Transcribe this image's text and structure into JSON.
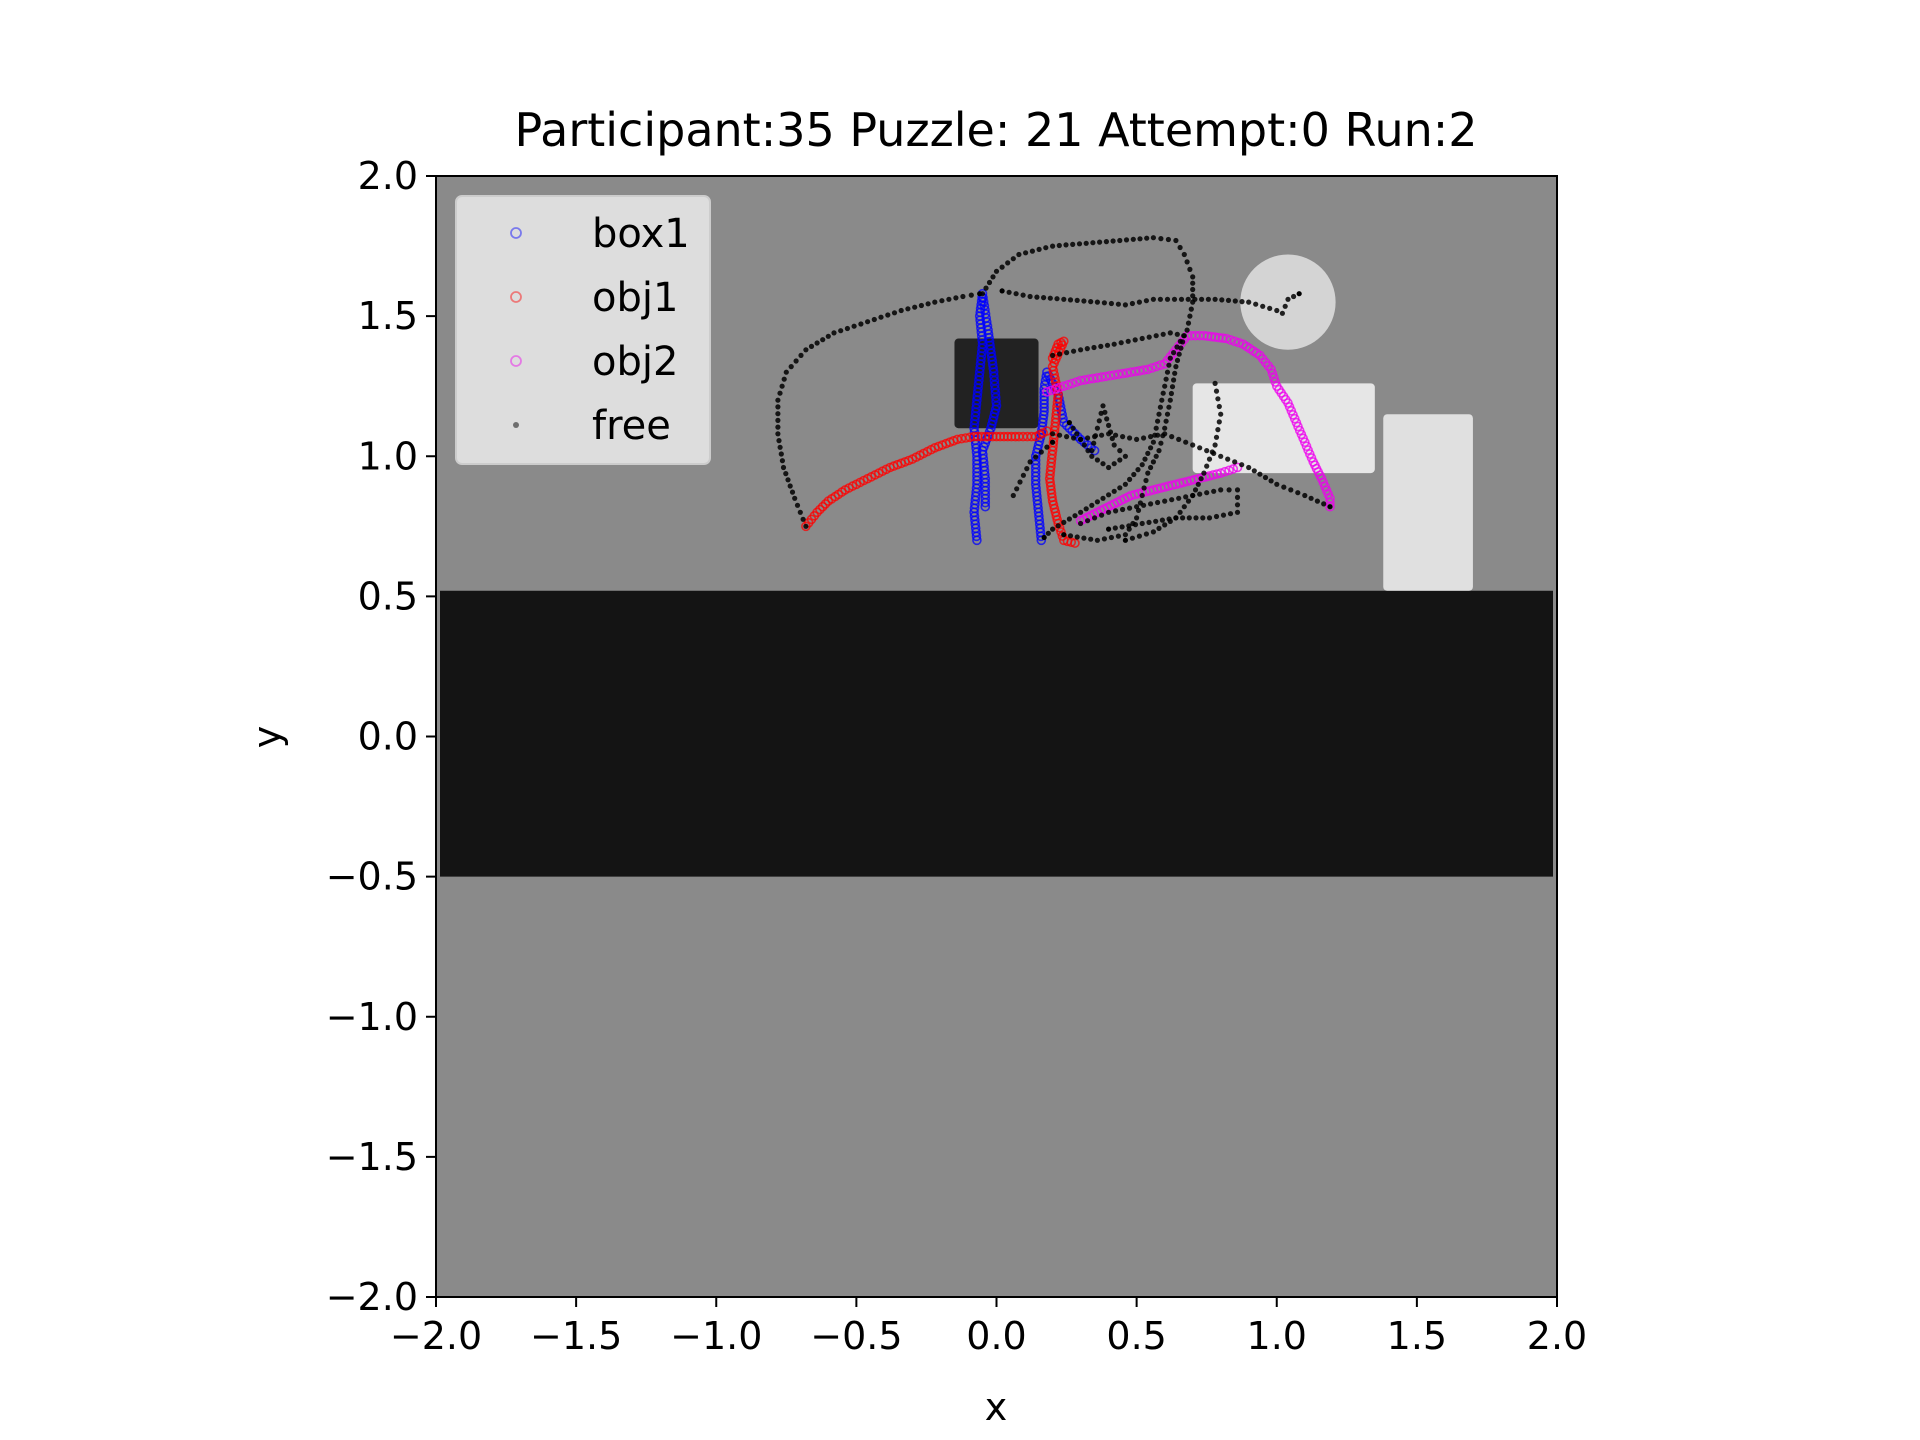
{
  "chart_data": {
    "type": "scatter",
    "title": "Participant:35 Puzzle: 21 Attempt:0 Run:2",
    "xlabel": "x",
    "ylabel": "y",
    "xlim": [
      -2.0,
      2.0
    ],
    "ylim": [
      -2.0,
      2.0
    ],
    "xticks": [
      "−2.0",
      "−1.5",
      "−1.0",
      "−0.5",
      "0.0",
      "0.5",
      "1.0",
      "1.5",
      "2.0"
    ],
    "yticks": [
      "2.0",
      "1.5",
      "1.0",
      "0.5",
      "0.0",
      "−0.5",
      "−1.0",
      "−1.5",
      "−2.0"
    ],
    "grid": false,
    "legend_position": "top-left",
    "background": {
      "floor_color": "#8a8a8a",
      "wall_band": {
        "y_range": [
          -0.5,
          0.52
        ],
        "color": "#141414"
      },
      "dark_box": {
        "x_range": [
          -0.15,
          0.15
        ],
        "y_range": [
          1.1,
          1.42
        ],
        "color": "#222222"
      },
      "light_block_1": {
        "x_range": [
          0.7,
          1.35
        ],
        "y_range": [
          0.94,
          1.26
        ],
        "color": "#e6e6e6"
      },
      "light_block_2": {
        "x_range": [
          1.38,
          1.7
        ],
        "y_range": [
          0.52,
          1.15
        ],
        "color": "#e0e0e0"
      },
      "round_target": {
        "center": [
          1.04,
          1.55
        ],
        "radius": 0.17,
        "color": "#d4d4d4"
      }
    },
    "series": [
      {
        "name": "box1",
        "color": "#0000ff",
        "marker": "hollow-circle",
        "segments": [
          [
            [
              -0.07,
              0.7
            ],
            [
              -0.08,
              0.8
            ],
            [
              -0.07,
              0.9
            ],
            [
              -0.07,
              1.0
            ],
            [
              -0.08,
              1.1
            ],
            [
              -0.07,
              1.2
            ],
            [
              -0.06,
              1.3
            ],
            [
              -0.05,
              1.4
            ],
            [
              -0.06,
              1.5
            ],
            [
              -0.05,
              1.58
            ],
            [
              -0.03,
              1.45
            ],
            [
              -0.01,
              1.3
            ],
            [
              0.0,
              1.18
            ],
            [
              -0.02,
              1.1
            ],
            [
              -0.05,
              1.02
            ],
            [
              -0.04,
              0.92
            ],
            [
              -0.04,
              0.82
            ]
          ],
          [
            [
              0.16,
              0.7
            ],
            [
              0.15,
              0.8
            ],
            [
              0.14,
              0.9
            ],
            [
              0.14,
              1.0
            ],
            [
              0.16,
              1.08
            ],
            [
              0.17,
              1.16
            ],
            [
              0.17,
              1.24
            ],
            [
              0.18,
              1.3
            ],
            [
              0.22,
              1.22
            ],
            [
              0.24,
              1.12
            ],
            [
              0.3,
              1.06
            ],
            [
              0.35,
              1.02
            ]
          ]
        ]
      },
      {
        "name": "obj1",
        "color": "#ff0000",
        "marker": "hollow-circle",
        "segments": [
          [
            [
              -0.68,
              0.75
            ],
            [
              -0.64,
              0.8
            ],
            [
              -0.6,
              0.84
            ],
            [
              -0.54,
              0.88
            ],
            [
              -0.46,
              0.92
            ],
            [
              -0.38,
              0.96
            ],
            [
              -0.3,
              0.99
            ],
            [
              -0.22,
              1.03
            ],
            [
              -0.14,
              1.06
            ],
            [
              -0.08,
              1.07
            ],
            [
              0.0,
              1.07
            ],
            [
              0.08,
              1.07
            ],
            [
              0.14,
              1.07
            ],
            [
              0.18,
              1.09
            ]
          ],
          [
            [
              0.2,
              1.35
            ],
            [
              0.22,
              1.4
            ],
            [
              0.24,
              1.41
            ],
            [
              0.2,
              1.32
            ],
            [
              0.22,
              1.22
            ],
            [
              0.21,
              1.12
            ],
            [
              0.2,
              1.02
            ],
            [
              0.19,
              0.92
            ],
            [
              0.2,
              0.84
            ],
            [
              0.22,
              0.76
            ],
            [
              0.24,
              0.7
            ],
            [
              0.28,
              0.69
            ]
          ]
        ]
      },
      {
        "name": "obj2",
        "color": "#ee00ee",
        "marker": "hollow-circle",
        "segments": [
          [
            [
              0.18,
              1.23
            ],
            [
              0.24,
              1.25
            ],
            [
              0.3,
              1.27
            ],
            [
              0.36,
              1.28
            ],
            [
              0.42,
              1.29
            ],
            [
              0.48,
              1.3
            ],
            [
              0.54,
              1.31
            ],
            [
              0.6,
              1.33
            ],
            [
              0.64,
              1.38
            ],
            [
              0.68,
              1.43
            ],
            [
              0.74,
              1.43
            ],
            [
              0.82,
              1.42
            ],
            [
              0.88,
              1.4
            ],
            [
              0.94,
              1.36
            ],
            [
              0.98,
              1.31
            ],
            [
              1.0,
              1.25
            ],
            [
              1.04,
              1.19
            ],
            [
              1.07,
              1.12
            ],
            [
              1.1,
              1.05
            ],
            [
              1.13,
              0.98
            ],
            [
              1.16,
              0.92
            ],
            [
              1.19,
              0.85
            ],
            [
              1.19,
              0.82
            ]
          ],
          [
            [
              0.3,
              0.77
            ],
            [
              0.36,
              0.8
            ],
            [
              0.42,
              0.83
            ],
            [
              0.48,
              0.86
            ],
            [
              0.56,
              0.88
            ],
            [
              0.64,
              0.9
            ],
            [
              0.72,
              0.92
            ],
            [
              0.8,
              0.94
            ],
            [
              0.86,
              0.96
            ]
          ]
        ]
      },
      {
        "name": "free",
        "color": "#000000",
        "marker": "dot",
        "segments": [
          [
            [
              -0.68,
              0.75
            ],
            [
              -0.72,
              0.85
            ],
            [
              -0.76,
              0.96
            ],
            [
              -0.78,
              1.08
            ],
            [
              -0.78,
              1.2
            ],
            [
              -0.75,
              1.3
            ],
            [
              -0.68,
              1.38
            ],
            [
              -0.58,
              1.44
            ],
            [
              -0.46,
              1.48
            ],
            [
              -0.34,
              1.52
            ],
            [
              -0.22,
              1.55
            ],
            [
              -0.12,
              1.57
            ],
            [
              -0.06,
              1.58
            ]
          ],
          [
            [
              1.0,
              1.52
            ],
            [
              0.9,
              1.55
            ],
            [
              0.78,
              1.56
            ],
            [
              0.66,
              1.56
            ],
            [
              0.56,
              1.56
            ],
            [
              0.46,
              1.54
            ],
            [
              0.36,
              1.55
            ],
            [
              0.24,
              1.56
            ],
            [
              0.12,
              1.57
            ],
            [
              0.02,
              1.59
            ]
          ],
          [
            [
              -0.05,
              1.58
            ],
            [
              0.0,
              1.66
            ],
            [
              0.08,
              1.72
            ],
            [
              0.2,
              1.75
            ],
            [
              0.32,
              1.76
            ],
            [
              0.44,
              1.77
            ],
            [
              0.56,
              1.78
            ],
            [
              0.64,
              1.77
            ],
            [
              0.67,
              1.72
            ],
            [
              0.7,
              1.64
            ],
            [
              0.7,
              1.55
            ],
            [
              0.68,
              1.45
            ],
            [
              0.62,
              1.35
            ],
            [
              0.6,
              1.25
            ],
            [
              0.58,
              1.15
            ],
            [
              0.56,
              1.05
            ],
            [
              0.52,
              0.97
            ],
            [
              0.46,
              0.9
            ],
            [
              0.38,
              0.85
            ],
            [
              0.3,
              0.8
            ],
            [
              0.2,
              0.74
            ],
            [
              0.17,
              0.71
            ]
          ],
          [
            [
              0.2,
              1.36
            ],
            [
              0.3,
              1.38
            ],
            [
              0.42,
              1.4
            ],
            [
              0.52,
              1.42
            ],
            [
              0.62,
              1.44
            ],
            [
              0.67,
              1.43
            ],
            [
              0.64,
              1.32
            ],
            [
              0.62,
              1.2
            ],
            [
              0.6,
              1.1
            ],
            [
              0.58,
              1.02
            ],
            [
              0.54,
              0.94
            ],
            [
              0.52,
              0.86
            ],
            [
              0.5,
              0.78
            ],
            [
              0.46,
              0.72
            ],
            [
              0.36,
              0.7
            ],
            [
              0.24,
              0.72
            ]
          ],
          [
            [
              0.2,
              1.08
            ],
            [
              0.3,
              1.06
            ],
            [
              0.4,
              1.08
            ],
            [
              0.5,
              1.06
            ],
            [
              0.6,
              1.08
            ],
            [
              0.7,
              1.04
            ],
            [
              0.8,
              1.0
            ],
            [
              0.9,
              0.96
            ],
            [
              1.0,
              0.9
            ],
            [
              1.1,
              0.86
            ],
            [
              1.19,
              0.82
            ]
          ],
          [
            [
              0.78,
              1.26
            ],
            [
              0.8,
              1.15
            ],
            [
              0.78,
              1.04
            ],
            [
              0.74,
              0.94
            ],
            [
              0.7,
              0.86
            ],
            [
              0.64,
              0.78
            ],
            [
              0.56,
              0.73
            ],
            [
              0.46,
              0.7
            ]
          ],
          [
            [
              0.3,
              0.76
            ],
            [
              0.4,
              0.8
            ],
            [
              0.5,
              0.82
            ],
            [
              0.6,
              0.84
            ],
            [
              0.7,
              0.86
            ],
            [
              0.8,
              0.88
            ],
            [
              0.86,
              0.88
            ],
            [
              0.86,
              0.8
            ],
            [
              0.76,
              0.78
            ],
            [
              0.64,
              0.78
            ],
            [
              0.52,
              0.76
            ],
            [
              0.4,
              0.74
            ]
          ],
          [
            [
              0.34,
              1.02
            ],
            [
              0.36,
              1.1
            ],
            [
              0.38,
              1.18
            ],
            [
              0.42,
              1.04
            ],
            [
              0.46,
              1.0
            ],
            [
              0.4,
              0.96
            ],
            [
              0.34,
              1.0
            ],
            [
              0.3,
              1.06
            ],
            [
              0.26,
              1.12
            ]
          ],
          [
            [
              0.06,
              0.86
            ],
            [
              0.12,
              0.98
            ],
            [
              0.2,
              1.05
            ]
          ],
          [
            [
              1.02,
              1.51
            ],
            [
              1.04,
              1.56
            ],
            [
              1.08,
              1.58
            ]
          ]
        ]
      }
    ]
  }
}
